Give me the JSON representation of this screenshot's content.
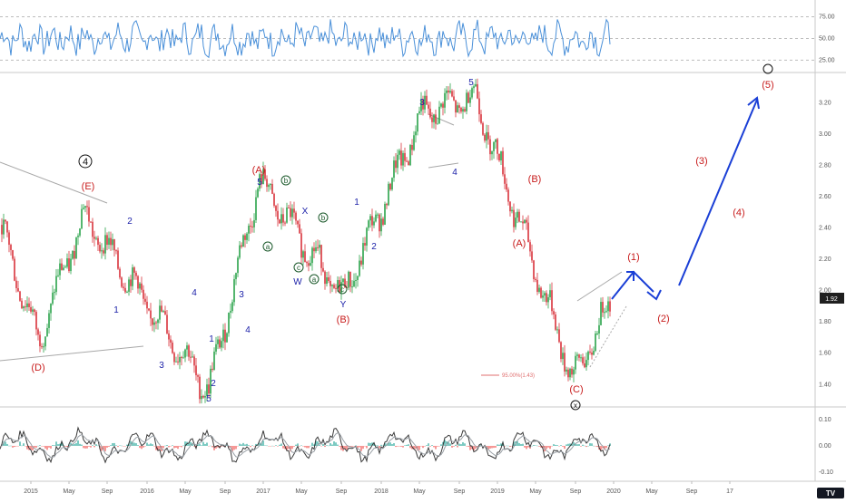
{
  "chart_data": [
    {
      "type": "line",
      "name": "rsi_panel",
      "ylim": [
        15,
        88
      ],
      "y_ticks": [
        "75.00",
        "50.00",
        "25.00"
      ],
      "reference_lines": [
        75,
        50,
        25
      ],
      "color": "#4a90d9"
    },
    {
      "type": "candlestick",
      "name": "price_panel",
      "ylim": [
        1.28,
        3.37
      ],
      "y_ticks": [
        "3.20",
        "3.00",
        "2.80",
        "2.60",
        "2.40",
        "2.20",
        "2.00",
        "1.80",
        "1.60",
        "1.40"
      ],
      "current_price": "1.92",
      "annotation": "95.00%(1.43)",
      "colors": {
        "up": "#2aa34a",
        "down": "#d8333b",
        "wave_arrow": "#1a3fd6"
      },
      "waves_red": [
        "(E)",
        "(D)",
        "(A)",
        "(B)",
        "(B)",
        "(A)",
        "(C)",
        "(1)",
        "(2)",
        "(3)",
        "(4)",
        "(5)"
      ],
      "waves_blue": [
        "1",
        "2",
        "3",
        "4",
        "5",
        "1",
        "2",
        "3",
        "4",
        "5",
        "X",
        "W",
        "Y",
        "1",
        "2",
        "3",
        "4",
        "5"
      ],
      "waves_circled": [
        "a",
        "b",
        "c",
        "b",
        "a",
        "c",
        "4",
        "x"
      ],
      "pivots": [
        2.1,
        1.78,
        2.5,
        1.37,
        2.7,
        1.93,
        3.15,
        3.22,
        1.44,
        1.92,
        1.7,
        3.3
      ]
    },
    {
      "type": "histogram",
      "name": "oscillator_panel",
      "ylim": [
        -0.12,
        0.13
      ],
      "y_ticks": [
        "0.10",
        "0.00",
        "-0.10"
      ],
      "colors": {
        "line_fast": "#3a3a3a",
        "line_slow": "#9aa0a6",
        "hist_pos": "#26a69a",
        "hist_neg": "#ef5350"
      }
    }
  ],
  "x_axis": {
    "labels": [
      "2015",
      "May",
      "Sep",
      "2016",
      "May",
      "Sep",
      "2017",
      "May",
      "Sep",
      "2018",
      "May",
      "Sep",
      "2019",
      "May",
      "Sep",
      "2020",
      "May",
      "Sep",
      "17"
    ]
  }
}
